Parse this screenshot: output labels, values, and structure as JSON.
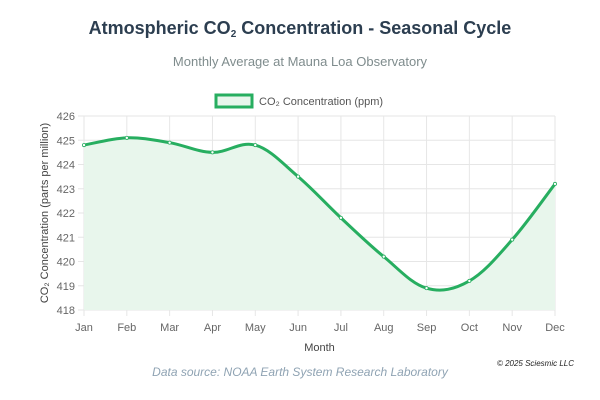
{
  "title_main": "Atmospheric CO",
  "title_sub": "2",
  "title_rest": " Concentration - Seasonal Cycle",
  "subtitle": "Monthly Average at Mauna Loa Observatory",
  "source": "Data source: NOAA Earth System Research Laboratory",
  "copyright": "© 2025 Sciesmic LLC",
  "colors": {
    "line": "#27ae60",
    "fill": "#e8f6ec",
    "grid": "#e6e6e6",
    "axis_text": "#666666"
  },
  "chart_data": {
    "type": "line",
    "title": "Atmospheric CO₂ Concentration - Seasonal Cycle",
    "subtitle": "Monthly Average at Mauna Loa Observatory",
    "xlabel": "Month",
    "ylabel": "CO₂ Concentration (parts per million)",
    "categories": [
      "Jan",
      "Feb",
      "Mar",
      "Apr",
      "May",
      "Jun",
      "Jul",
      "Aug",
      "Sep",
      "Oct",
      "Nov",
      "Dec"
    ],
    "ylim": [
      418,
      426
    ],
    "yticks": [
      418,
      419,
      420,
      421,
      422,
      423,
      424,
      425,
      426
    ],
    "legend": "top-center",
    "grid": true,
    "filled": true,
    "series": [
      {
        "name": "CO₂ Concentration (ppm)",
        "values": [
          424.8,
          425.1,
          424.9,
          424.5,
          424.8,
          423.5,
          421.8,
          420.2,
          418.9,
          419.2,
          420.9,
          423.2
        ]
      }
    ]
  }
}
